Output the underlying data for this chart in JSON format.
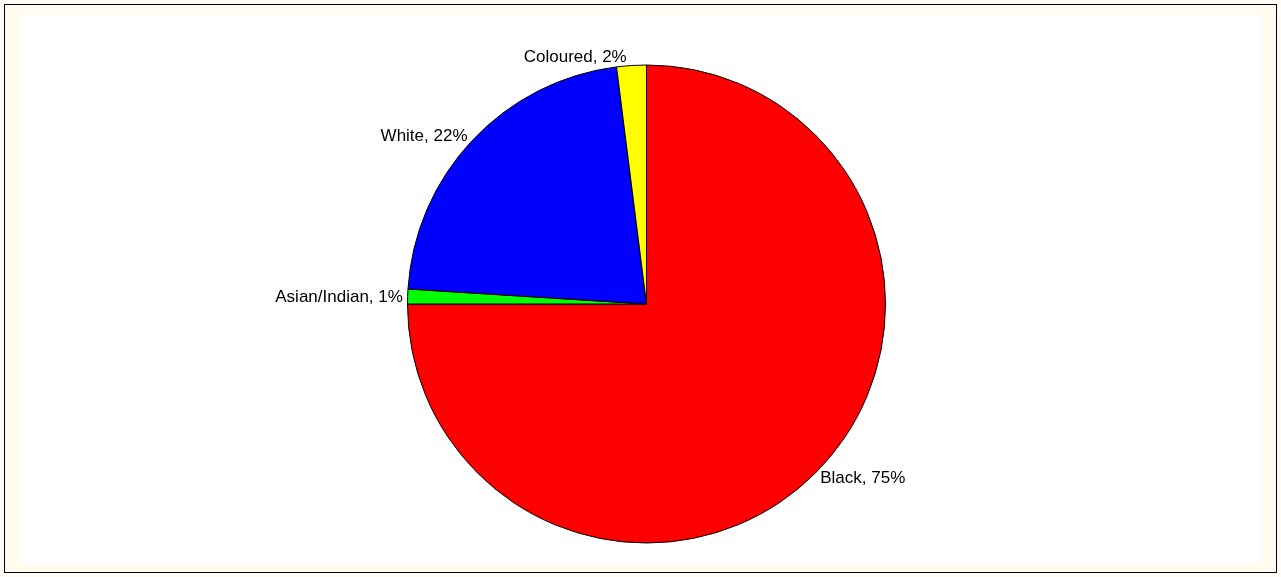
{
  "chart_data": {
    "type": "pie",
    "categories": [
      "Black",
      "Asian/Indian",
      "White",
      "Coloured"
    ],
    "values": [
      75,
      1,
      22,
      2
    ],
    "colors": [
      "#ff0000",
      "#00ff00",
      "#0000ff",
      "#ffff00"
    ],
    "value_labels": [
      "75%",
      "1%",
      "22%",
      "2%"
    ]
  }
}
